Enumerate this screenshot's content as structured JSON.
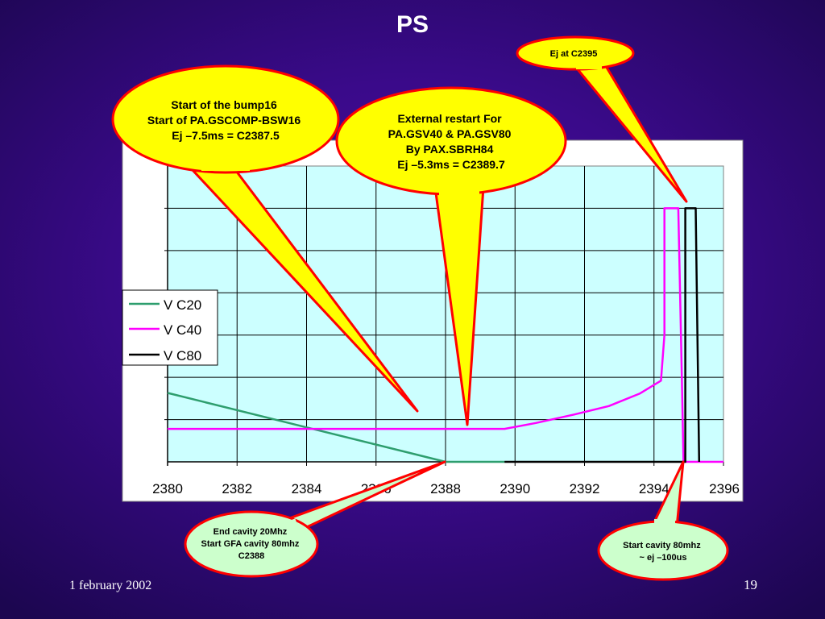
{
  "slide": {
    "title": "PS",
    "footer_date": "1 february 2002",
    "page_number": "19"
  },
  "chart_data": {
    "type": "line",
    "title": "",
    "xlabel": "",
    "ylabel": "",
    "xlim": [
      2380,
      2396
    ],
    "x_ticks": [
      "2380",
      "2382",
      "2384",
      "2386",
      "2388",
      "2390",
      "2392",
      "2394",
      "2396"
    ],
    "ylim": [
      0,
      7
    ],
    "grid": true,
    "legend_position": "left-middle",
    "series": [
      {
        "name": "V C20",
        "color": "#2e9e6e",
        "points": [
          [
            2380,
            1.63
          ],
          [
            2388,
            0
          ],
          [
            2389.7,
            0
          ]
        ]
      },
      {
        "name": "V C40",
        "color": "#ff00ff",
        "points": [
          [
            2380,
            0.78
          ],
          [
            2389.7,
            0.78
          ],
          [
            2390.6,
            0.92
          ],
          [
            2391.7,
            1.12
          ],
          [
            2392.7,
            1.32
          ],
          [
            2393.6,
            1.62
          ],
          [
            2394.2,
            1.92
          ],
          [
            2394.3,
            3.0
          ],
          [
            2394.3,
            6.0
          ],
          [
            2394.7,
            6.0
          ],
          [
            2394.8,
            2.0
          ],
          [
            2394.85,
            0
          ],
          [
            2396,
            0
          ]
        ]
      },
      {
        "name": "V C80",
        "color": "#000000",
        "points": [
          [
            2389.7,
            0
          ],
          [
            2394.9,
            0
          ],
          [
            2394.9,
            6.0
          ],
          [
            2395.2,
            6.0
          ],
          [
            2395.3,
            0
          ]
        ]
      }
    ]
  },
  "callouts": [
    {
      "id": "bump16",
      "fill": "#ffff00",
      "text_color": "#000000",
      "lines": [
        "Start of the bump16",
        "Start of PA.GSCOMP-BSW16",
        "Ej –7.5ms = C2387.5"
      ]
    },
    {
      "id": "external-restart",
      "fill": "#ffff00",
      "text_color": "#000000",
      "lines": [
        "External restart For",
        "PA.GSV40 & PA.GSV80",
        "By PAX.SBRH84",
        "Ej –5.3ms = C2389.7"
      ]
    },
    {
      "id": "ej-c2395",
      "fill": "#ffff00",
      "text_color": "#000000",
      "lines": [
        "Ej at C2395"
      ]
    },
    {
      "id": "end-cavity-20mhz",
      "fill": "#ccffcc",
      "text_color": "#000000",
      "lines": [
        "End cavity 20Mhz",
        "Start GFA cavity 80mhz",
        "C2388"
      ]
    },
    {
      "id": "start-cavity-80mhz",
      "fill": "#ccffcc",
      "text_color": "#000000",
      "lines": [
        "Start cavity 80mhz",
        "~ ej –100us"
      ]
    }
  ],
  "colors": {
    "callout_border": "#ff0000",
    "plot_bg": "#ccffff",
    "chart_bg": "#ffffff"
  }
}
